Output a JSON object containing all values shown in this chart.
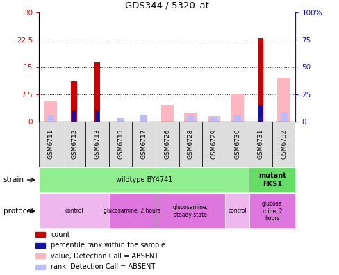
{
  "title": "GDS344 / 5320_at",
  "samples": [
    "GSM6711",
    "GSM6712",
    "GSM6713",
    "GSM6715",
    "GSM6717",
    "GSM6726",
    "GSM6728",
    "GSM6729",
    "GSM6730",
    "GSM6731",
    "GSM6732"
  ],
  "count_values": [
    0,
    11,
    16.5,
    0,
    0,
    0,
    0,
    0,
    0,
    23,
    0
  ],
  "rank_values": [
    0,
    10,
    10,
    0,
    0,
    0,
    0,
    0,
    0,
    15,
    0
  ],
  "absent_count": [
    5.5,
    0,
    0,
    0,
    0,
    4.5,
    2.5,
    1.5,
    7.5,
    0,
    12
  ],
  "absent_rank": [
    6,
    0,
    0,
    3,
    6,
    0,
    6,
    4.5,
    6,
    0,
    9
  ],
  "ylim_left": [
    0,
    30
  ],
  "ylim_right": [
    0,
    100
  ],
  "yticks_left": [
    0,
    7.5,
    15,
    22.5,
    30
  ],
  "yticks_right": [
    0,
    25,
    50,
    75,
    100
  ],
  "yticklabels_left": [
    "0",
    "7.5",
    "15",
    "22.5",
    "30"
  ],
  "yticklabels_right": [
    "0",
    "25",
    "50",
    "75",
    "100%"
  ],
  "strain_groups": [
    {
      "label": "wildtype BY4741",
      "start": 0,
      "end": 9,
      "color": "#90EE90",
      "bold": false
    },
    {
      "label": "mutant\nFKS1",
      "start": 9,
      "end": 11,
      "color": "#66DD66",
      "bold": true
    }
  ],
  "protocol_groups": [
    {
      "label": "control",
      "start": 0,
      "end": 3,
      "color": "#EEB8EE"
    },
    {
      "label": "glucosamine, 2 hours",
      "start": 3,
      "end": 5,
      "color": "#DD77DD"
    },
    {
      "label": "glucosamine,\nsteady state",
      "start": 5,
      "end": 8,
      "color": "#DD77DD"
    },
    {
      "label": "control",
      "start": 8,
      "end": 9,
      "color": "#EEB8EE"
    },
    {
      "label": "glucosa\nmine, 2\nhours",
      "start": 9,
      "end": 11,
      "color": "#DD77DD"
    }
  ],
  "color_count": "#CC0000",
  "color_rank": "#1111AA",
  "color_absent_count": "#FFB6C1",
  "color_absent_rank": "#BBBBFF",
  "color_axis_left": "#CC0000",
  "color_axis_right": "#1111AA",
  "legend_items": [
    {
      "color": "#CC0000",
      "label": "count"
    },
    {
      "color": "#1111AA",
      "label": "percentile rank within the sample"
    },
    {
      "color": "#FFB6C1",
      "label": "value, Detection Call = ABSENT"
    },
    {
      "color": "#BBBBFF",
      "label": "rank, Detection Call = ABSENT"
    }
  ]
}
